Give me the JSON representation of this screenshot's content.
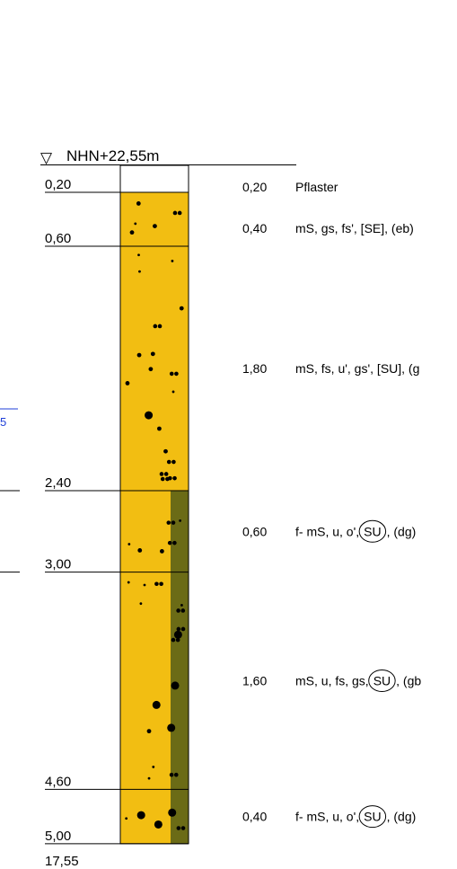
{
  "header": {
    "symbol": "▽",
    "elevation_label": "NHN+22,55m"
  },
  "side_marker": {
    "partial_text": "5"
  },
  "bottom": {
    "elevation_label": "17,55"
  },
  "colors": {
    "sand": "#f2be12",
    "olive": "#6b6b16",
    "water_marker": "#1f3fd8",
    "line": "#000000"
  },
  "layers": [
    {
      "depth_bottom": 0.2,
      "depth_label": "0,20",
      "thickness_label": "0,20",
      "description": "Pflaster",
      "fill": "none",
      "olive_strip": false,
      "encircled": "",
      "suffix": ""
    },
    {
      "depth_bottom": 0.6,
      "depth_label": "0,60",
      "thickness_label": "0,40",
      "description": "mS, gs, fs', [SE], (eb)",
      "fill": "sand",
      "olive_strip": false,
      "encircled": "",
      "suffix": ""
    },
    {
      "depth_bottom": 2.4,
      "depth_label": "2,40",
      "thickness_label": "1,80",
      "description": "mS, fs, u', gs', [SU], (g",
      "fill": "sand",
      "olive_strip": false,
      "encircled": "",
      "suffix": ""
    },
    {
      "depth_bottom": 3.0,
      "depth_label": "3,00",
      "thickness_label": "0,60",
      "description": "f- mS, u, o',",
      "fill": "sand",
      "olive_strip": true,
      "encircled": "SU",
      "suffix": ", (dg)"
    },
    {
      "depth_bottom": 4.6,
      "depth_label": "4,60",
      "thickness_label": "1,60",
      "description": "mS, u, fs, gs,",
      "fill": "sand",
      "olive_strip": true,
      "encircled": "SU",
      "suffix": ", (gb"
    },
    {
      "depth_bottom": 5.0,
      "depth_label": "5,00",
      "thickness_label": "0,40",
      "description": "f- mS, u, o',",
      "fill": "sand",
      "olive_strip": true,
      "encircled": "SU",
      "suffix": ", (dg)"
    }
  ]
}
